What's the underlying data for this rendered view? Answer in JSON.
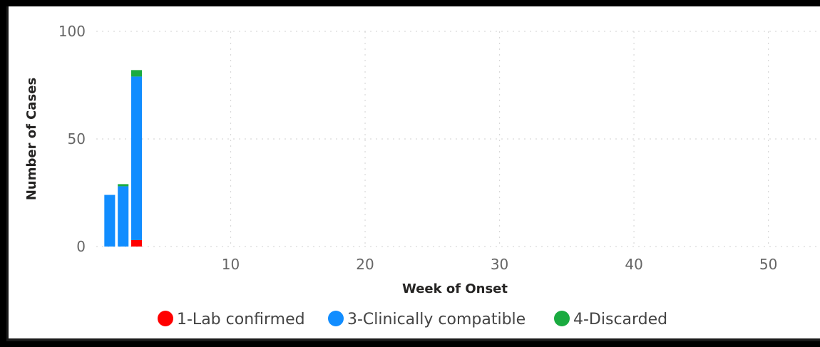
{
  "chart_data": {
    "type": "bar",
    "stacked": true,
    "xlabel": "Week of Onset",
    "ylabel": "Number of Cases",
    "xlim": [
      0,
      54
    ],
    "ylim": [
      0,
      100
    ],
    "x_ticks": [
      10,
      20,
      30,
      40,
      50
    ],
    "y_ticks": [
      0,
      50,
      100
    ],
    "grid": true,
    "legend_position": "bottom",
    "x": [
      1,
      2,
      3
    ],
    "series": [
      {
        "name": "1-Lab confirmed",
        "color": "#ff0000",
        "values": [
          0,
          0,
          3
        ]
      },
      {
        "name": "3-Clinically compatible",
        "color": "#118dff",
        "values": [
          24,
          28,
          76
        ]
      },
      {
        "name": "4-Discarded",
        "color": "#1aab40",
        "values": [
          0,
          1,
          3
        ]
      }
    ]
  }
}
